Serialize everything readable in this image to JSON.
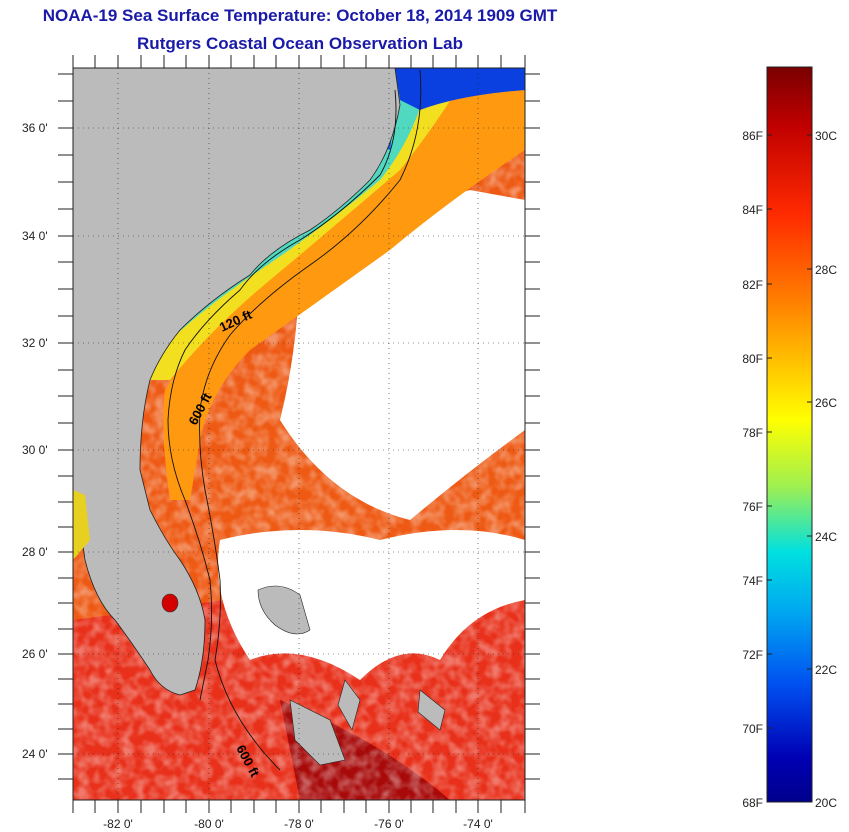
{
  "header": {
    "title": "NOAA-19 Sea Surface Temperature:  October 18, 2014 1909 GMT",
    "subtitle": "Rutgers Coastal Ocean Observation Lab"
  },
  "map": {
    "lat_labels": [
      "36 0'",
      "34 0'",
      "32 0'",
      "30 0'",
      "28 0'",
      "26 0'",
      "24 0'"
    ],
    "lon_labels": [
      "-82 0'",
      "-80 0'",
      "-78 0'",
      "-76 0'",
      "-74 0'"
    ],
    "contour_labels": [
      "120 ft",
      "600 ft",
      "600 ft"
    ]
  },
  "legend": {
    "fahrenheit": [
      "86F",
      "84F",
      "82F",
      "80F",
      "78F",
      "76F",
      "74F",
      "72F",
      "70F",
      "68F"
    ],
    "celsius": [
      "30C",
      "28C",
      "26C",
      "24C",
      "22C",
      "20C"
    ],
    "colors": [
      "#7a0000",
      "#d10000",
      "#ff2a00",
      "#ff7f00",
      "#ffd200",
      "#ffff00",
      "#a0f050",
      "#00e6e6",
      "#00a8f0",
      "#0050f0",
      "#0000b4",
      "#00008c"
    ]
  }
}
